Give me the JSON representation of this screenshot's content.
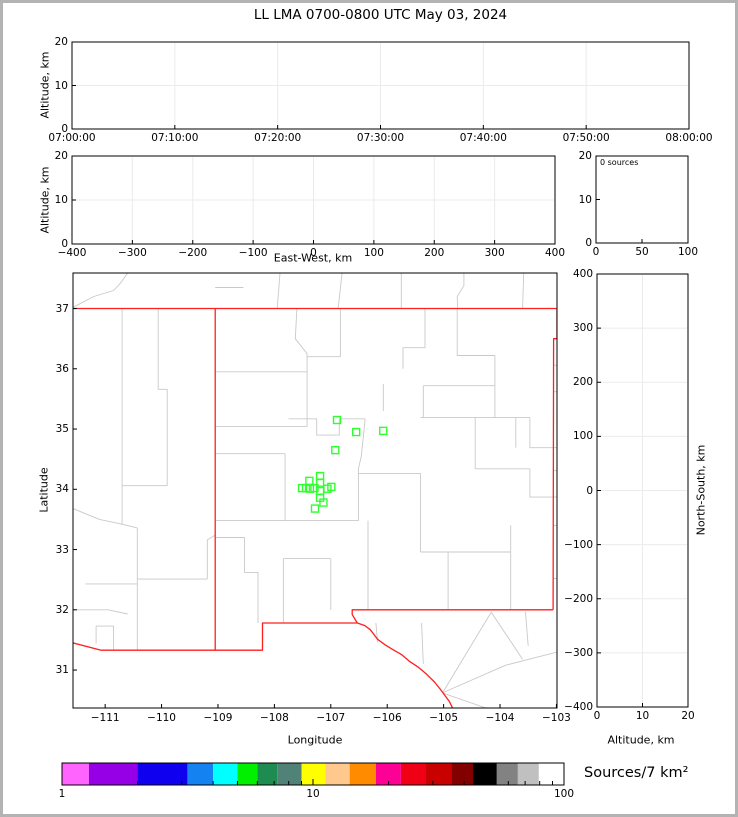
{
  "title": "LL LMA 0700-0800 UTC May 03, 2024",
  "chart_data": {
    "type": "scatter",
    "panels": [
      {
        "id": "time_height",
        "ylabel": "Altitude, km",
        "xlim": [
          "07:00:00",
          "08:00:00"
        ],
        "ylim": [
          0,
          20
        ],
        "xtick_labels": [
          "07:00:00",
          "07:10:00",
          "07:20:00",
          "07:30:00",
          "07:40:00",
          "07:50:00",
          "08:00:00"
        ],
        "ytick_values": [
          0,
          10,
          20
        ],
        "ytick_labels": [
          "0",
          "10",
          "20"
        ],
        "grid": true,
        "points": []
      },
      {
        "id": "ew_height",
        "xlabel": "East-West, km",
        "ylabel": "Altitude, km",
        "xlim": [
          -400,
          400
        ],
        "ylim": [
          0,
          20
        ],
        "xtick_values": [
          -400,
          -300,
          -200,
          -100,
          0,
          100,
          200,
          300,
          400
        ],
        "xtick_labels": [
          "−400",
          "−300",
          "−200",
          "−100",
          "0",
          "100",
          "200",
          "300",
          "400"
        ],
        "ytick_values": [
          0,
          10,
          20
        ],
        "ytick_labels": [
          "0",
          "10",
          "20"
        ],
        "grid": true,
        "points": []
      },
      {
        "id": "altitude_histogram",
        "annotation": "0 sources",
        "xlim": [
          0,
          100
        ],
        "ylim": [
          0,
          20
        ],
        "xtick_values": [
          0,
          50,
          100
        ],
        "xtick_labels": [
          "0",
          "50",
          "100"
        ],
        "ytick_values": [
          0,
          10,
          20
        ],
        "ytick_labels": [
          "0",
          "10",
          "20"
        ],
        "grid": false,
        "bars": []
      },
      {
        "id": "plan_view_map",
        "xlabel": "Longitude",
        "ylabel": "Latitude",
        "xlim": [
          -111.57,
          -102.99
        ],
        "ylim": [
          30.37,
          37.59
        ],
        "xtick_values": [
          -111,
          -110,
          -109,
          -108,
          -107,
          -106,
          -105,
          -104,
          -103
        ],
        "xtick_labels": [
          "−111",
          "−110",
          "−109",
          "−108",
          "−107",
          "−106",
          "−105",
          "−104",
          "−103"
        ],
        "ytick_values": [
          31,
          32,
          33,
          34,
          35,
          36,
          37
        ],
        "ytick_labels": [
          "31",
          "32",
          "33",
          "34",
          "35",
          "36",
          "37"
        ],
        "grid": false,
        "stations": [
          [
            -106.89,
            35.15
          ],
          [
            -106.55,
            34.95
          ],
          [
            -106.07,
            34.97
          ],
          [
            -106.92,
            34.65
          ],
          [
            -107.19,
            34.22
          ],
          [
            -107.38,
            34.14
          ],
          [
            -107.19,
            34.11
          ],
          [
            -107.51,
            34.02
          ],
          [
            -107.44,
            34.02
          ],
          [
            -107.37,
            34.01
          ],
          [
            -107.29,
            34.02
          ],
          [
            -107.19,
            33.97
          ],
          [
            -107.06,
            34.01
          ],
          [
            -106.99,
            34.04
          ],
          [
            -107.19,
            33.86
          ],
          [
            -107.13,
            33.78
          ],
          [
            -107.28,
            33.68
          ]
        ]
      },
      {
        "id": "ns_altitude",
        "xlabel": "Altitude, km",
        "ylabel": "North-South, km",
        "xlim": [
          0,
          20
        ],
        "ylim": [
          -400,
          400
        ],
        "xtick_values": [
          0,
          10,
          20
        ],
        "xtick_labels": [
          "0",
          "10",
          "20"
        ],
        "ytick_values": [
          400,
          300,
          200,
          100,
          0,
          -100,
          -200,
          -300,
          -400
        ],
        "ytick_labels": [
          "400",
          "300",
          "200",
          "100",
          "0",
          "−100",
          "−200",
          "−300",
          "−400"
        ],
        "grid": true,
        "points": []
      }
    ],
    "colorbar": {
      "label": "Sources/7 km²",
      "scale": "log",
      "range": [
        1,
        100
      ],
      "tick_values": [
        1,
        10,
        100
      ],
      "tick_labels": [
        "1",
        "10",
        "100"
      ],
      "minor_tick_values": [
        2,
        3,
        4,
        5,
        6,
        7,
        8,
        9,
        20,
        30,
        40,
        50,
        60,
        70,
        80,
        90
      ],
      "segment_boundaries": [
        1,
        1.28,
        2,
        3.16,
        4,
        5,
        6,
        7.2,
        9,
        11.2,
        14,
        17.8,
        22.4,
        28.2,
        35.5,
        43.4,
        54,
        65.5,
        79.4,
        100
      ],
      "segment_colors": [
        "#ff64ff",
        "#9600e6",
        "#0f00f0",
        "#1482f0",
        "#00ffff",
        "#00f000",
        "#1e8c50",
        "#508278",
        "#ffff00",
        "#ffc88c",
        "#ff8c00",
        "#ff0096",
        "#f00014",
        "#c80000",
        "#820000",
        "#000000",
        "#828282",
        "#c0c0c0",
        "#ffffff"
      ]
    },
    "map_layers": {
      "state_border_color": "#ff1f1f",
      "county_border_color": "#c9c9c9",
      "station_color": "#2eff2e",
      "state_lines": [
        [
          [
            -111.57,
            37
          ],
          [
            -103.0,
            37
          ]
        ],
        [
          [
            -109.05,
            37
          ],
          [
            -109.05,
            31.33
          ]
        ],
        [
          [
            -111.57,
            31.45
          ],
          [
            -111.07,
            31.33
          ],
          [
            -108.21,
            31.33
          ],
          [
            -108.21,
            31.78
          ],
          [
            -106.53,
            31.78
          ]
        ],
        [
          [
            -106.53,
            31.78
          ],
          [
            -106.62,
            31.92
          ],
          [
            -106.62,
            32.0
          ],
          [
            -103.06,
            32.0
          ]
        ],
        [
          [
            -103.06,
            32.0
          ],
          [
            -103.05,
            36.5
          ],
          [
            -102.99,
            36.5
          ],
          [
            -102.99,
            37.0
          ]
        ],
        [
          [
            -106.53,
            31.78
          ],
          [
            -106.4,
            31.74
          ],
          [
            -106.3,
            31.67
          ],
          [
            -106.17,
            31.51
          ],
          [
            -106.04,
            31.42
          ],
          [
            -105.9,
            31.34
          ],
          [
            -105.75,
            31.26
          ],
          [
            -105.6,
            31.14
          ],
          [
            -105.44,
            31.04
          ],
          [
            -105.3,
            30.93
          ],
          [
            -105.16,
            30.8
          ],
          [
            -105.05,
            30.67
          ],
          [
            -104.98,
            30.58
          ],
          [
            -104.9,
            30.48
          ],
          [
            -104.84,
            30.37
          ]
        ]
      ],
      "county_lines": [
        [
          [
            -111.57,
            37.02
          ],
          [
            -111.2,
            37.2
          ],
          [
            -110.85,
            37.3
          ],
          [
            -110.73,
            37.42
          ],
          [
            -110.6,
            37.59
          ]
        ],
        [
          [
            -109.05,
            37.35
          ],
          [
            -108.55,
            37.35
          ]
        ],
        [
          [
            -107.95,
            37
          ],
          [
            -107.9,
            37.59
          ]
        ],
        [
          [
            -106.87,
            37
          ],
          [
            -106.8,
            37.59
          ]
        ],
        [
          [
            -105.75,
            37
          ],
          [
            -105.75,
            37.59
          ]
        ],
        [
          [
            -104.75,
            37
          ],
          [
            -104.76,
            37.2
          ],
          [
            -104.64,
            37.38
          ],
          [
            -104.64,
            37.59
          ]
        ],
        [
          [
            -103.6,
            37
          ],
          [
            -103.58,
            37.59
          ]
        ],
        [
          [
            -110.7,
            37
          ],
          [
            -110.7,
            34.06
          ]
        ],
        [
          [
            -110.06,
            37
          ],
          [
            -110.06,
            35.66
          ],
          [
            -109.9,
            35.66
          ],
          [
            -109.9,
            34.06
          ]
        ],
        [
          [
            -110.7,
            34.06
          ],
          [
            -109.9,
            34.06
          ]
        ],
        [
          [
            -111.57,
            33.68
          ],
          [
            -111.1,
            33.5
          ],
          [
            -110.7,
            33.42
          ],
          [
            -110.43,
            33.36
          ]
        ],
        [
          [
            -110.7,
            33.42
          ],
          [
            -110.7,
            34.06
          ]
        ],
        [
          [
            -110.43,
            33.36
          ],
          [
            -110.43,
            32.51
          ]
        ],
        [
          [
            -110.43,
            32.51
          ],
          [
            -109.19,
            32.51
          ]
        ],
        [
          [
            -109.19,
            32.51
          ],
          [
            -109.19,
            33.16
          ],
          [
            -109.05,
            33.24
          ]
        ],
        [
          [
            -110.43,
            32.51
          ],
          [
            -110.43,
            31.33
          ]
        ],
        [
          [
            -111.35,
            32.43
          ],
          [
            -110.43,
            32.43
          ]
        ],
        [
          [
            -111.57,
            32.0
          ],
          [
            -110.95,
            32.0
          ],
          [
            -110.6,
            31.93
          ]
        ],
        [
          [
            -111.16,
            31.73
          ],
          [
            -110.85,
            31.73
          ],
          [
            -110.85,
            31.33
          ]
        ],
        [
          [
            -111.16,
            31.73
          ],
          [
            -111.16,
            31.44
          ]
        ],
        [
          [
            -109.05,
            35.95
          ],
          [
            -107.42,
            35.95
          ]
        ],
        [
          [
            -107.6,
            37
          ],
          [
            -107.63,
            36.5
          ],
          [
            -107.42,
            36.25
          ],
          [
            -107.42,
            35.95
          ]
        ],
        [
          [
            -107.42,
            36.2
          ],
          [
            -106.83,
            36.2
          ]
        ],
        [
          [
            -106.83,
            36.2
          ],
          [
            -106.83,
            37
          ]
        ],
        [
          [
            -105.33,
            37
          ],
          [
            -105.33,
            36.35
          ],
          [
            -105.72,
            36.35
          ],
          [
            -105.72,
            36.0
          ]
        ],
        [
          [
            -104.76,
            37
          ],
          [
            -104.76,
            36.22
          ],
          [
            -104.09,
            36.22
          ]
        ],
        [
          [
            -104.09,
            36.22
          ],
          [
            -104.09,
            35.19
          ]
        ],
        [
          [
            -105.36,
            35.72
          ],
          [
            -104.09,
            35.72
          ]
        ],
        [
          [
            -105.36,
            35.72
          ],
          [
            -105.36,
            35.19
          ]
        ],
        [
          [
            -105.41,
            35.19
          ],
          [
            -103.47,
            35.19
          ]
        ],
        [
          [
            -103.47,
            35.19
          ],
          [
            -103.47,
            34.69
          ],
          [
            -102.99,
            34.69
          ]
        ],
        [
          [
            -106.07,
            35.75
          ],
          [
            -106.07,
            35.3
          ]
        ],
        [
          [
            -109.05,
            35.04
          ],
          [
            -107.42,
            35.04
          ]
        ],
        [
          [
            -107.42,
            35.95
          ],
          [
            -107.42,
            35.04
          ]
        ],
        [
          [
            -107.75,
            35.17
          ],
          [
            -107.25,
            35.17
          ],
          [
            -107.25,
            34.9
          ],
          [
            -106.85,
            34.9
          ],
          [
            -106.85,
            35.17
          ],
          [
            -106.39,
            35.17
          ]
        ],
        [
          [
            -107.81,
            34.59
          ],
          [
            -107.81,
            33.48
          ]
        ],
        [
          [
            -109.05,
            34.59
          ],
          [
            -107.81,
            34.59
          ]
        ],
        [
          [
            -109.05,
            33.48
          ],
          [
            -106.51,
            33.48
          ]
        ],
        [
          [
            -106.39,
            35.17
          ],
          [
            -106.46,
            34.55
          ],
          [
            -106.51,
            34.34
          ],
          [
            -106.51,
            33.48
          ]
        ],
        [
          [
            -106.51,
            34.26
          ],
          [
            -105.41,
            34.26
          ],
          [
            -105.41,
            32.96
          ]
        ],
        [
          [
            -105.41,
            32.96
          ],
          [
            -103.81,
            32.96
          ]
        ],
        [
          [
            -103.81,
            33.4
          ],
          [
            -103.81,
            32.0
          ]
        ],
        [
          [
            -103.72,
            35.19
          ],
          [
            -103.72,
            34.69
          ]
        ],
        [
          [
            -104.44,
            35.19
          ],
          [
            -104.44,
            34.34
          ],
          [
            -103.47,
            34.34
          ]
        ],
        [
          [
            -103.47,
            34.34
          ],
          [
            -103.47,
            33.87
          ],
          [
            -102.99,
            33.87
          ]
        ],
        [
          [
            -108.53,
            33.2
          ],
          [
            -108.53,
            32.62
          ],
          [
            -108.29,
            32.62
          ],
          [
            -108.29,
            31.78
          ]
        ],
        [
          [
            -109.05,
            33.2
          ],
          [
            -108.53,
            33.2
          ]
        ],
        [
          [
            -107.84,
            32.85
          ],
          [
            -107.84,
            31.78
          ]
        ],
        [
          [
            -107.84,
            32.85
          ],
          [
            -107.0,
            32.85
          ]
        ],
        [
          [
            -107.0,
            32.85
          ],
          [
            -107.0,
            32.0
          ]
        ],
        [
          [
            -106.34,
            33.48
          ],
          [
            -106.34,
            32.0
          ]
        ],
        [
          [
            -104.92,
            32.96
          ],
          [
            -104.92,
            32.0
          ]
        ],
        [
          [
            -103.05,
            36.06
          ],
          [
            -102.99,
            36.06
          ]
        ],
        [
          [
            -103.05,
            35.62
          ],
          [
            -102.99,
            35.62
          ]
        ],
        [
          [
            -103.05,
            34.31
          ],
          [
            -102.99,
            34.31
          ]
        ],
        [
          [
            -103.05,
            33.4
          ],
          [
            -102.99,
            33.4
          ]
        ],
        [
          [
            -103.05,
            32.52
          ],
          [
            -102.99,
            32.52
          ]
        ],
        [
          [
            -104.15,
            31.97
          ],
          [
            -105.02,
            30.62
          ]
        ],
        [
          [
            -105.02,
            30.62
          ],
          [
            -104.25,
            30.37
          ]
        ],
        [
          [
            -105.02,
            30.62
          ],
          [
            -103.9,
            31.08
          ],
          [
            -102.99,
            31.3
          ]
        ],
        [
          [
            -104.15,
            31.95
          ],
          [
            -103.6,
            31.18
          ]
        ],
        [
          [
            -103.55,
            31.97
          ],
          [
            -103.5,
            31.4
          ]
        ],
        [
          [
            -106.2,
            31.78
          ],
          [
            -106.17,
            31.46
          ]
        ],
        [
          [
            -105.39,
            31.78
          ],
          [
            -105.36,
            31.1
          ]
        ]
      ]
    }
  }
}
